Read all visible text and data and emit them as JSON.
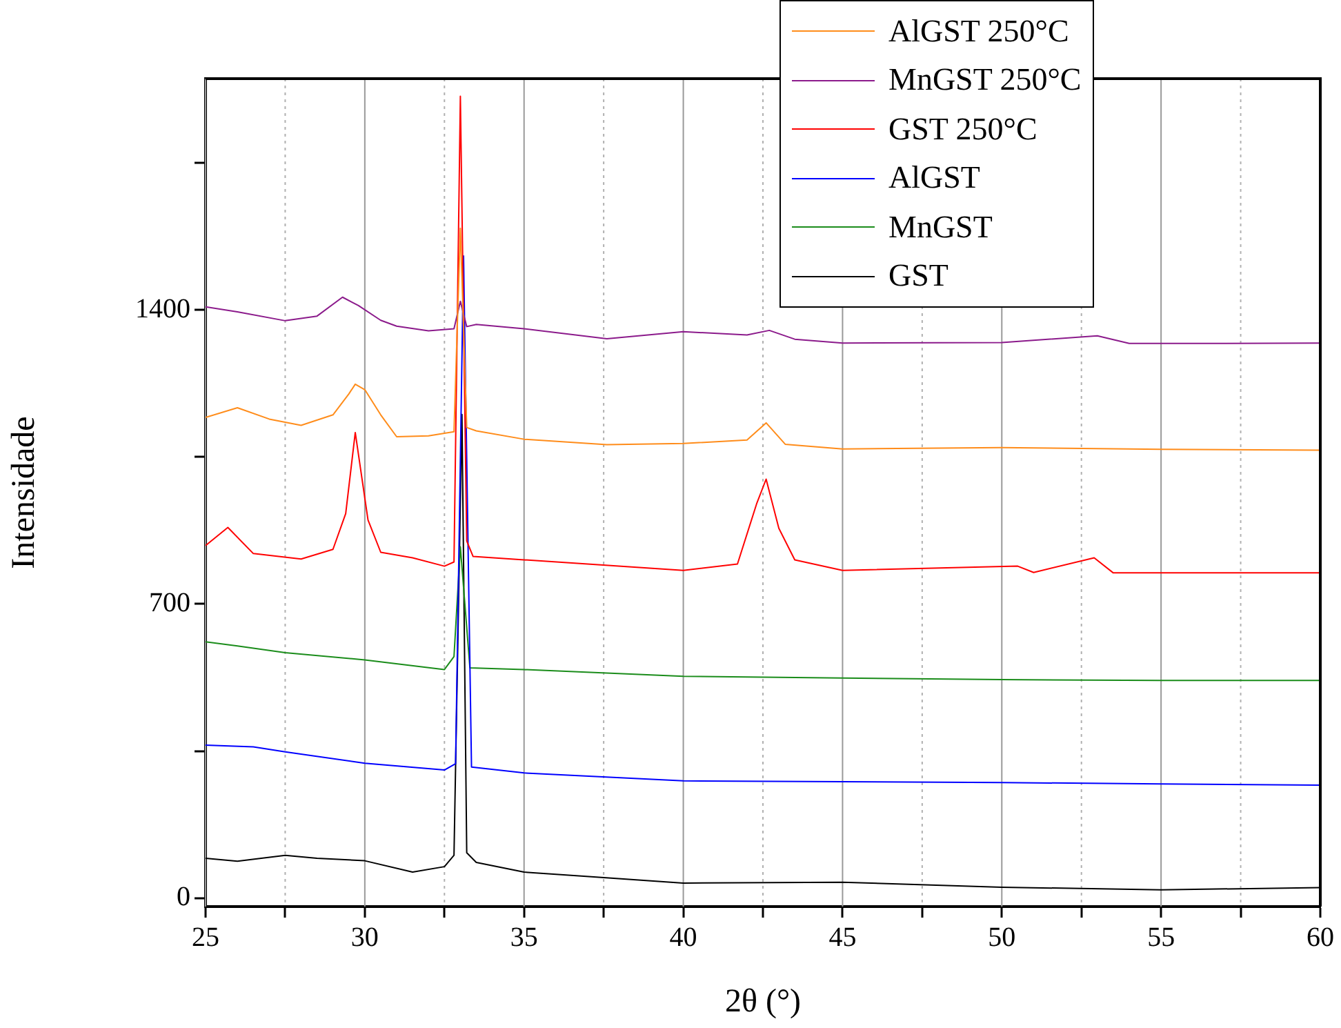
{
  "chart_data": {
    "type": "line",
    "xlabel": "2θ (°)",
    "ylabel": "Intensidade",
    "xlim": [
      25,
      60
    ],
    "xticks": [
      25,
      {
        "value": 27.5,
        "label": null
      },
      30,
      {
        "value": 32.5,
        "label": null
      },
      35,
      {
        "value": 37.5,
        "label": null
      },
      40,
      {
        "value": 42.5,
        "label": null
      },
      45,
      {
        "value": 47.5,
        "label": null
      },
      50,
      {
        "value": 52.5,
        "label": null
      },
      55,
      {
        "value": 57.5,
        "label": null
      },
      60
    ],
    "ylim": [
      -20,
      1950
    ],
    "yticks": [
      0,
      {
        "value": 350,
        "label": null
      },
      700,
      {
        "value": 1050,
        "label": null
      },
      1400,
      {
        "value": 1750,
        "label": null
      }
    ],
    "grid": "x",
    "legend": "top right",
    "marker": "none",
    "line_style": "solid",
    "series": [
      {
        "name": "AlGST 250°C",
        "color": "#ff8c1a",
        "x": [
          25,
          26,
          27,
          28,
          29,
          29.5,
          29.7,
          30,
          30.5,
          31,
          32,
          32.8,
          33,
          33.2,
          33.5,
          35,
          37.6,
          40,
          42,
          42.6,
          43.2,
          45,
          50,
          55,
          60
        ],
        "values": [
          1144,
          1167,
          1140,
          1125,
          1150,
          1200,
          1223,
          1210,
          1150,
          1098,
          1100,
          1110,
          1594,
          1120,
          1112,
          1092,
          1079,
          1082,
          1090,
          1131,
          1080,
          1069,
          1072,
          1068,
          1066
        ]
      },
      {
        "name": "MnGST 250°C",
        "color": "#8b1a8b",
        "x": [
          25,
          26,
          27.5,
          28.5,
          29.3,
          29.8,
          30.5,
          31,
          32,
          32.8,
          33,
          33.2,
          33.5,
          35,
          37.6,
          40,
          42,
          42.7,
          43.5,
          45,
          50,
          53,
          54,
          57,
          60
        ],
        "values": [
          1407,
          1395,
          1374,
          1385,
          1430,
          1410,
          1375,
          1361,
          1350,
          1355,
          1420,
          1360,
          1365,
          1355,
          1331,
          1348,
          1340,
          1351,
          1330,
          1321,
          1322,
          1338,
          1320,
          1320,
          1321
        ]
      },
      {
        "name": "GST 250°C",
        "color": "#ff0000",
        "x": [
          25,
          25.7,
          26.5,
          28,
          29,
          29.4,
          29.7,
          30.1,
          30.5,
          31.5,
          32.5,
          32.8,
          33,
          33.2,
          33.4,
          35,
          40,
          41.7,
          42.3,
          42.6,
          43,
          43.5,
          45,
          50.5,
          51,
          52.9,
          53.5,
          60
        ],
        "values": [
          839,
          882,
          820,
          807,
          830,
          915,
          1108,
          900,
          823,
          810,
          790,
          800,
          1908,
          850,
          813,
          805,
          780,
          795,
          938,
          997,
          880,
          805,
          780,
          790,
          775,
          810,
          774,
          774
        ]
      },
      {
        "name": "AlGST",
        "color": "#0000ff",
        "x": [
          25,
          26.5,
          27.5,
          30,
          32.5,
          32.85,
          33.1,
          33.35,
          35,
          40,
          45,
          50,
          55,
          60
        ],
        "values": [
          364,
          360,
          348,
          321,
          305,
          320,
          1528,
          312,
          298,
          279,
          277,
          275,
          272,
          269
        ]
      },
      {
        "name": "MnGST",
        "color": "#1a8c1a",
        "x": [
          25,
          26,
          27.5,
          30,
          32.5,
          32.8,
          33,
          33.3,
          35,
          40,
          45,
          50,
          55,
          60
        ],
        "values": [
          610,
          600,
          584,
          567,
          544,
          575,
          836,
          548,
          544,
          528,
          524,
          520,
          518,
          518
        ]
      },
      {
        "name": "GST",
        "color": "#000000",
        "x": [
          25,
          26,
          27.5,
          28.5,
          30,
          31.5,
          32.5,
          32.8,
          33.05,
          33.2,
          33.5,
          35,
          40,
          45,
          50,
          55,
          60
        ],
        "values": [
          95,
          88,
          102,
          95,
          89,
          62,
          75,
          102,
          1151,
          108,
          85,
          62,
          36,
          38,
          26,
          20,
          25
        ]
      }
    ]
  }
}
